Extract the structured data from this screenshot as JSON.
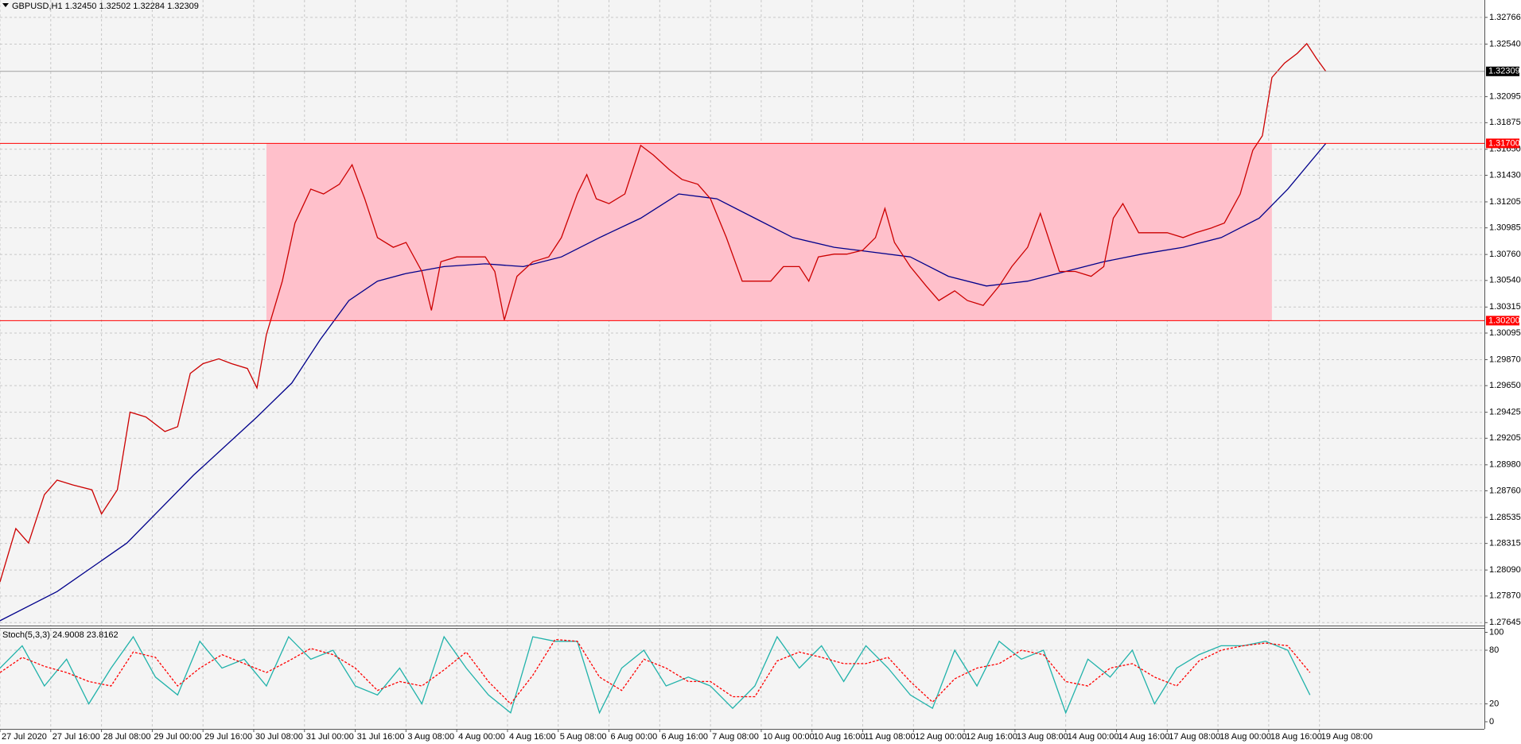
{
  "chart_data": {
    "type": "line",
    "title": "GBPUSD,H1  1.32450 1.32502 1.32284 1.32309",
    "grid": true,
    "xlim": [
      0,
      468
    ],
    "ylim": [
      1.2762,
      1.32913
    ],
    "xticks": [
      {
        "value": 0,
        "label": "27 Jul 2020"
      },
      {
        "value": 16,
        "label": "27 Jul 16:00"
      },
      {
        "value": 32,
        "label": "28 Jul 08:00"
      },
      {
        "value": 48,
        "label": "29 Jul 00:00"
      },
      {
        "value": 64,
        "label": "29 Jul 16:00"
      },
      {
        "value": 80,
        "label": "30 Jul 08:00"
      },
      {
        "value": 96,
        "label": "31 Jul 00:00"
      },
      {
        "value": 112,
        "label": "31 Jul 16:00"
      },
      {
        "value": 128,
        "label": "3 Aug 08:00"
      },
      {
        "value": 144,
        "label": "4 Aug 00:00"
      },
      {
        "value": 160,
        "label": "4 Aug 16:00"
      },
      {
        "value": 176,
        "label": "5 Aug 08:00"
      },
      {
        "value": 192,
        "label": "6 Aug 00:00"
      },
      {
        "value": 208,
        "label": "6 Aug 16:00"
      },
      {
        "value": 224,
        "label": "7 Aug 08:00"
      },
      {
        "value": 240,
        "label": "10 Aug 00:00"
      },
      {
        "value": 256,
        "label": "10 Aug 16:00"
      },
      {
        "value": 272,
        "label": "11 Aug 08:00"
      },
      {
        "value": 288,
        "label": "12 Aug 00:00"
      },
      {
        "value": 304,
        "label": "12 Aug 16:00"
      },
      {
        "value": 320,
        "label": "13 Aug 08:00"
      },
      {
        "value": 336,
        "label": "14 Aug 00:00"
      },
      {
        "value": 352,
        "label": "14 Aug 16:00"
      },
      {
        "value": 368,
        "label": "17 Aug 08:00"
      },
      {
        "value": 384,
        "label": "18 Aug 00:00"
      },
      {
        "value": 400,
        "label": "18 Aug 16:00"
      },
      {
        "value": 416,
        "label": "19 Aug 08:00"
      }
    ],
    "yticks": [
      {
        "value": 1.32766,
        "label": "1.32766"
      },
      {
        "value": 1.3254,
        "label": "1.32540"
      },
      {
        "value": 1.32095,
        "label": "1.32095"
      },
      {
        "value": 1.31875,
        "label": "1.31875"
      },
      {
        "value": 1.3165,
        "label": "1.31650"
      },
      {
        "value": 1.3143,
        "label": "1.31430"
      },
      {
        "value": 1.31205,
        "label": "1.31205"
      },
      {
        "value": 1.30985,
        "label": "1.30985"
      },
      {
        "value": 1.3076,
        "label": "1.30760"
      },
      {
        "value": 1.3054,
        "label": "1.30540"
      },
      {
        "value": 1.30315,
        "label": "1.30315"
      },
      {
        "value": 1.30095,
        "label": "1.30095"
      },
      {
        "value": 1.2987,
        "label": "1.29870"
      },
      {
        "value": 1.2965,
        "label": "1.29650"
      },
      {
        "value": 1.29425,
        "label": "1.29425"
      },
      {
        "value": 1.29205,
        "label": "1.29205"
      },
      {
        "value": 1.2898,
        "label": "1.28980"
      },
      {
        "value": 1.2876,
        "label": "1.28760"
      },
      {
        "value": 1.28535,
        "label": "1.28535"
      },
      {
        "value": 1.28315,
        "label": "1.28315"
      },
      {
        "value": 1.2809,
        "label": "1.28090"
      },
      {
        "value": 1.2787,
        "label": "1.27870"
      },
      {
        "value": 1.27645,
        "label": "1.27645"
      }
    ],
    "last_price": {
      "value": 1.32309,
      "label": "1.32309"
    },
    "levels": [
      {
        "value": 1.317,
        "label": "1.31700",
        "color": "#ff0000"
      },
      {
        "value": 1.302,
        "label": "1.30200",
        "color": "#ff0000"
      }
    ],
    "zone": {
      "x": [
        84,
        401
      ],
      "y": [
        1.302,
        1.317
      ],
      "color": "#ffc0cb"
    },
    "x": [
      0,
      5,
      9,
      14,
      18,
      23,
      29,
      32,
      37,
      41,
      46,
      52,
      56,
      60,
      64,
      69,
      73,
      78,
      81,
      84,
      89,
      93,
      98,
      102,
      107,
      111,
      115,
      119,
      124,
      128,
      133,
      136,
      139,
      144,
      148,
      153,
      156,
      159,
      163,
      168,
      173,
      177,
      182,
      185,
      188,
      192,
      197,
      202,
      206,
      211,
      215,
      220,
      224,
      229,
      234,
      238,
      243,
      247,
      252,
      255,
      258,
      263,
      267,
      272,
      276,
      279,
      282,
      287,
      292,
      296,
      301,
      305,
      310,
      315,
      319,
      324,
      328,
      331,
      334,
      339,
      344,
      348,
      351,
      354,
      359,
      363,
      368,
      373,
      377,
      382,
      386,
      391,
      395,
      398,
      401,
      405,
      409,
      412,
      415,
      418
    ],
    "series": [
      {
        "color": "#cc0000",
        "values": [
          1.27989,
          1.28441,
          1.28318,
          1.28728,
          1.28851,
          1.2881,
          1.28769,
          1.28564,
          1.28769,
          1.29426,
          1.29385,
          1.29262,
          1.29303,
          1.29754,
          1.29836,
          1.29877,
          1.29836,
          1.29795,
          1.29631,
          1.30082,
          1.30534,
          1.31026,
          1.31313,
          1.31272,
          1.31354,
          1.31519,
          1.31231,
          1.30903,
          1.30821,
          1.30862,
          1.30616,
          1.30287,
          1.30698,
          1.30739,
          1.30739,
          1.30739,
          1.30616,
          1.30205,
          1.30575,
          1.30698,
          1.30739,
          1.30903,
          1.31272,
          1.31436,
          1.31231,
          1.3119,
          1.31272,
          1.31683,
          1.31601,
          1.31478,
          1.31395,
          1.31354,
          1.31231,
          1.30903,
          1.30534,
          1.30534,
          1.30534,
          1.30657,
          1.30657,
          1.30534,
          1.30739,
          1.30763,
          1.30763,
          1.30796,
          1.30903,
          1.31149,
          1.30862,
          1.30657,
          1.30493,
          1.3037,
          1.30452,
          1.3037,
          1.30329,
          1.30493,
          1.30657,
          1.30821,
          1.31108,
          1.30862,
          1.30616,
          1.30616,
          1.30575,
          1.30657,
          1.31067,
          1.3119,
          1.30944,
          1.30944,
          1.30944,
          1.30903,
          1.30944,
          1.30985,
          1.31026,
          1.31272,
          1.31642,
          1.31765,
          1.32257,
          1.3238,
          1.32462,
          1.32544,
          1.32421,
          1.32309
        ]
      }
    ],
    "ma_series": [
      {
        "color": "#00008b",
        "x": [
          0,
          18,
          40,
          61,
          81,
          92,
          101,
          110,
          119,
          128,
          140,
          153,
          165,
          177,
          189,
          202,
          214,
          226,
          238,
          250,
          263,
          275,
          287,
          299,
          311,
          324,
          336,
          348,
          360,
          373,
          385,
          397,
          406,
          418
        ],
        "values": [
          1.27661,
          1.27908,
          1.28318,
          1.28892,
          1.29385,
          1.29672,
          1.30041,
          1.3037,
          1.30534,
          1.30599,
          1.30657,
          1.30681,
          1.30657,
          1.30739,
          1.30903,
          1.31067,
          1.31272,
          1.31231,
          1.31067,
          1.30903,
          1.30821,
          1.3078,
          1.30739,
          1.30575,
          1.30493,
          1.30534,
          1.30616,
          1.30698,
          1.30763,
          1.30821,
          1.30903,
          1.31067,
          1.31313,
          1.31699
        ]
      }
    ],
    "indicator": {
      "title": "Stoch(5,3,3) 24.9008 23.8162",
      "ylim": [
        -8,
        104
      ],
      "yticks": [
        100,
        80,
        20,
        0
      ],
      "x": [
        0,
        7,
        14,
        21,
        28,
        35,
        42,
        49,
        56,
        63,
        70,
        77,
        84,
        91,
        98,
        105,
        112,
        119,
        126,
        133,
        140,
        147,
        154,
        161,
        168,
        175,
        182,
        189,
        196,
        203,
        210,
        217,
        224,
        231,
        238,
        245,
        252,
        259,
        266,
        273,
        280,
        287,
        294,
        301,
        308,
        315,
        322,
        329,
        336,
        343,
        350,
        357,
        364,
        371,
        378,
        385,
        392,
        399,
        406,
        413
      ],
      "series": [
        {
          "color": "#20b2aa",
          "values": [
            60,
            85,
            40,
            70,
            20,
            60,
            95,
            50,
            30,
            90,
            60,
            70,
            40,
            95,
            70,
            80,
            40,
            30,
            60,
            20,
            95,
            60,
            30,
            10,
            95,
            90,
            90,
            10,
            60,
            80,
            40,
            50,
            40,
            15,
            40,
            95,
            60,
            85,
            45,
            85,
            60,
            30,
            15,
            80,
            40,
            90,
            70,
            80,
            10,
            70,
            50,
            80,
            20,
            60,
            75,
            85,
            85,
            90,
            80,
            30
          ]
        },
        {
          "color": "#ff0000",
          "dashed": true,
          "values": [
            55,
            72,
            62,
            55,
            45,
            40,
            78,
            72,
            40,
            60,
            75,
            65,
            55,
            68,
            82,
            75,
            60,
            35,
            45,
            40,
            58,
            78,
            45,
            20,
            52,
            92,
            90,
            50,
            35,
            70,
            60,
            45,
            45,
            28,
            28,
            68,
            78,
            72,
            65,
            65,
            72,
            45,
            22,
            48,
            60,
            65,
            80,
            75,
            45,
            40,
            60,
            65,
            50,
            40,
            68,
            80,
            85,
            88,
            85,
            55
          ]
        }
      ]
    }
  }
}
